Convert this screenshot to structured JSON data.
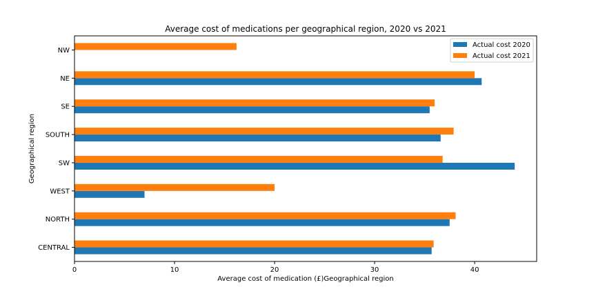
{
  "chart_data": {
    "type": "bar",
    "orientation": "horizontal",
    "title": "Average cost of medications per geographical region, 2020 vs 2021",
    "xlabel": "Average cost of medication (£)Geographical region",
    "ylabel": "Geographical region",
    "categories": [
      "CENTRAL",
      "NORTH",
      "WEST",
      "SW",
      "SOUTH",
      "SE",
      "NE",
      "NW"
    ],
    "series": [
      {
        "name": "Actual cost 2020",
        "color": "#1f77b4",
        "values": [
          35.7,
          37.5,
          7.0,
          44.0,
          36.6,
          35.5,
          40.7,
          null
        ]
      },
      {
        "name": "Actual cost 2021",
        "color": "#ff7f0e",
        "values": [
          35.9,
          38.1,
          20.0,
          36.8,
          37.9,
          36.0,
          40.0,
          16.2
        ]
      }
    ],
    "xlim": [
      0,
      46.2
    ],
    "xticks": [
      0,
      10,
      20,
      30,
      40
    ],
    "legend": "top-right"
  }
}
